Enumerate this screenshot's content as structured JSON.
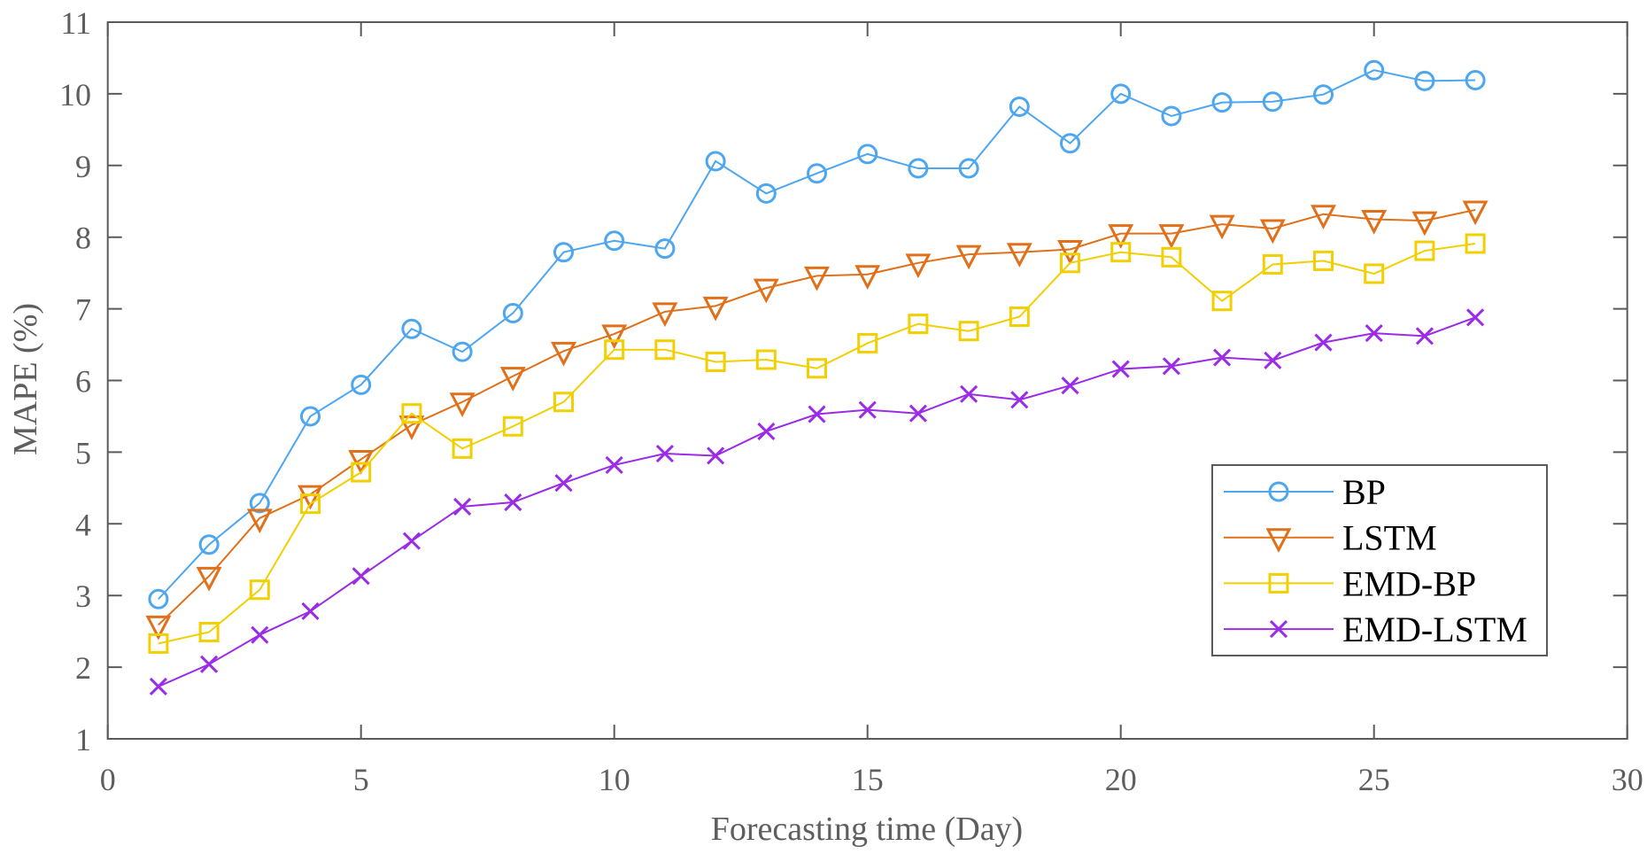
{
  "chart_data": {
    "type": "line",
    "title": "",
    "xlabel": "Forecasting time (Day)",
    "ylabel": "MAPE (%)",
    "xlim": [
      0,
      30
    ],
    "ylim": [
      1,
      11
    ],
    "xticks": [
      0,
      5,
      10,
      15,
      20,
      25,
      30
    ],
    "yticks": [
      1,
      2,
      3,
      4,
      5,
      6,
      7,
      8,
      9,
      10,
      11
    ],
    "grid": false,
    "legend_position": "lower-right",
    "x": [
      1,
      2,
      3,
      4,
      5,
      6,
      7,
      8,
      9,
      10,
      11,
      12,
      13,
      14,
      15,
      16,
      17,
      18,
      19,
      20,
      21,
      22,
      23,
      24,
      25,
      26,
      27
    ],
    "series": [
      {
        "name": "BP",
        "color": "#4DA6F0",
        "marker": "circle",
        "values": [
          2.95,
          3.71,
          4.29,
          5.5,
          5.94,
          6.72,
          6.4,
          6.94,
          7.79,
          7.95,
          7.84,
          9.06,
          8.61,
          8.89,
          9.16,
          8.96,
          8.96,
          9.82,
          9.31,
          10.0,
          9.69,
          9.88,
          9.89,
          9.99,
          10.33,
          10.18,
          10.19
        ]
      },
      {
        "name": "LSTM",
        "color": "#E0701A",
        "marker": "triangle-down",
        "values": [
          2.59,
          3.27,
          4.08,
          4.41,
          4.9,
          5.38,
          5.7,
          6.06,
          6.41,
          6.65,
          6.96,
          7.04,
          7.29,
          7.46,
          7.48,
          7.64,
          7.76,
          7.79,
          7.83,
          8.05,
          8.05,
          8.18,
          8.12,
          8.32,
          8.25,
          8.23,
          8.38
        ]
      },
      {
        "name": "EMD-BP",
        "color": "#F2CF00",
        "marker": "square",
        "values": [
          2.33,
          2.49,
          3.08,
          4.28,
          4.72,
          5.54,
          5.05,
          5.36,
          5.7,
          6.43,
          6.43,
          6.26,
          6.29,
          6.17,
          6.52,
          6.79,
          6.69,
          6.89,
          7.64,
          7.79,
          7.72,
          7.11,
          7.62,
          7.67,
          7.49,
          7.81,
          7.91
        ]
      },
      {
        "name": "EMD-LSTM",
        "color": "#9B2BE6",
        "marker": "x",
        "values": [
          1.73,
          2.04,
          2.45,
          2.78,
          3.27,
          3.76,
          4.24,
          4.3,
          4.57,
          4.82,
          4.98,
          4.95,
          5.29,
          5.53,
          5.59,
          5.54,
          5.81,
          5.73,
          5.93,
          6.16,
          6.2,
          6.32,
          6.28,
          6.53,
          6.66,
          6.62,
          6.88
        ]
      }
    ]
  }
}
